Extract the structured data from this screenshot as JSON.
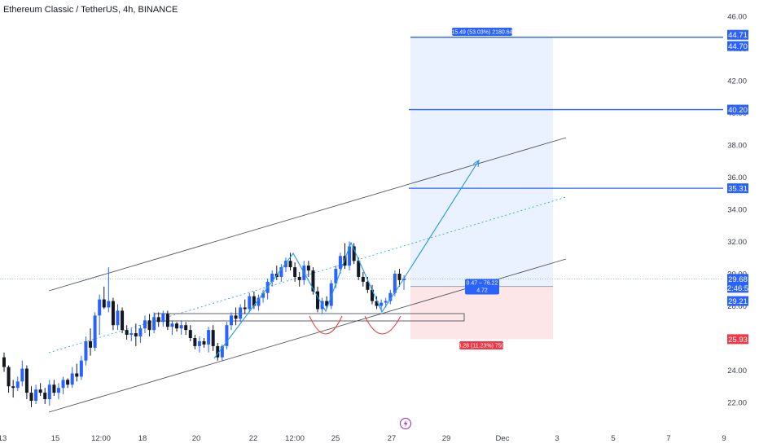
{
  "header": {
    "title": "Ethereum Classic / TetherUS, 4h, BINANCE"
  },
  "colors": {
    "up": "#2962ff",
    "down": "#131722",
    "accent": "#2962ff",
    "loss": "#f23645",
    "target_zone": "#eaf1ff",
    "stop_zone": "#fde6e8"
  },
  "chart_data": {
    "type": "candlestick",
    "ylim": [
      21,
      46.5
    ],
    "y_ticks": [
      "22.00",
      "24.00",
      "26.00",
      "28.00",
      "30.00",
      "32.00",
      "34.00",
      "36.00",
      "38.00",
      "40.00",
      "42.00",
      "44.00",
      "46.00"
    ],
    "x_ticks": [
      "13",
      "15",
      "12:00",
      "18",
      "20",
      "22",
      "12:00",
      "25",
      "27",
      "29",
      "Dec",
      "3",
      "5",
      "7",
      "9"
    ],
    "x_tick_pos": [
      3,
      68,
      124,
      175,
      241,
      311,
      362,
      412,
      481,
      548,
      617,
      684,
      753,
      821,
      889
    ],
    "candles": [
      [
        0,
        24.8,
        25.1,
        23.9,
        24.2
      ],
      [
        1,
        24.2,
        24.3,
        22.6,
        23.0
      ],
      [
        2,
        23.0,
        23.4,
        22.3,
        22.9
      ],
      [
        3,
        22.9,
        23.6,
        22.7,
        23.3
      ],
      [
        4,
        23.3,
        24.6,
        23.0,
        24.1
      ],
      [
        5,
        24.1,
        24.3,
        22.2,
        22.6
      ],
      [
        6,
        22.6,
        23.0,
        21.7,
        22.1
      ],
      [
        7,
        22.1,
        23.1,
        21.9,
        22.8
      ],
      [
        8,
        22.8,
        23.2,
        22.4,
        22.6
      ],
      [
        9,
        22.6,
        22.9,
        21.9,
        22.2
      ],
      [
        10,
        22.2,
        23.4,
        21.8,
        23.1
      ],
      [
        11,
        23.1,
        23.4,
        22.4,
        22.6
      ],
      [
        12,
        22.6,
        23.2,
        22.2,
        22.9
      ],
      [
        13,
        22.9,
        23.6,
        22.5,
        23.4
      ],
      [
        14,
        23.4,
        23.5,
        22.9,
        23.1
      ],
      [
        15,
        23.1,
        24.2,
        22.9,
        23.8
      ],
      [
        16,
        23.8,
        24.4,
        23.3,
        23.6
      ],
      [
        17,
        23.6,
        24.9,
        23.4,
        24.6
      ],
      [
        18,
        24.6,
        26.1,
        24.3,
        25.8
      ],
      [
        19,
        25.8,
        26.6,
        24.9,
        25.4
      ],
      [
        20,
        25.4,
        27.6,
        25.2,
        27.4
      ],
      [
        21,
        27.4,
        28.7,
        26.2,
        28.4
      ],
      [
        22,
        28.4,
        29.2,
        27.8,
        27.9
      ],
      [
        23,
        27.9,
        30.4,
        27.6,
        28.3
      ],
      [
        24,
        28.3,
        28.5,
        26.5,
        26.8
      ],
      [
        25,
        26.8,
        28.1,
        26.5,
        27.7
      ],
      [
        26,
        27.7,
        27.9,
        26.3,
        26.5
      ],
      [
        27,
        26.5,
        26.8,
        25.9,
        26.2
      ],
      [
        28,
        26.2,
        26.6,
        25.8,
        26.3
      ],
      [
        29,
        26.3,
        26.9,
        25.5,
        26.1
      ],
      [
        30,
        26.1,
        26.8,
        25.7,
        26.6
      ],
      [
        31,
        26.6,
        27.4,
        26.3,
        27.1
      ],
      [
        32,
        27.1,
        27.5,
        26.1,
        26.5
      ],
      [
        33,
        26.5,
        27.6,
        26.3,
        27.3
      ],
      [
        34,
        27.3,
        27.6,
        26.7,
        27.0
      ],
      [
        35,
        27.0,
        27.7,
        26.7,
        27.5
      ],
      [
        36,
        27.5,
        27.7,
        26.5,
        26.7
      ],
      [
        37,
        26.7,
        27.1,
        26.2,
        26.9
      ],
      [
        38,
        26.9,
        27.0,
        26.4,
        26.6
      ],
      [
        39,
        26.6,
        27.1,
        26.2,
        26.8
      ],
      [
        40,
        26.8,
        27.0,
        26.2,
        26.5
      ],
      [
        41,
        26.5,
        26.8,
        25.8,
        26.0
      ],
      [
        42,
        26.0,
        26.2,
        25.3,
        25.5
      ],
      [
        43,
        25.5,
        26.1,
        25.1,
        25.8
      ],
      [
        44,
        25.8,
        26.0,
        25.4,
        25.6
      ],
      [
        45,
        25.6,
        26.7,
        25.1,
        26.5
      ],
      [
        46,
        26.5,
        26.8,
        25.2,
        25.5
      ],
      [
        47,
        25.5,
        25.7,
        24.6,
        24.8
      ],
      [
        48,
        24.8,
        25.6,
        24.6,
        25.5
      ],
      [
        49,
        25.5,
        27.0,
        25.3,
        26.8
      ],
      [
        50,
        26.8,
        27.6,
        26.5,
        27.4
      ],
      [
        51,
        27.4,
        27.9,
        26.8,
        27.2
      ],
      [
        52,
        27.2,
        28.1,
        27.0,
        27.9
      ],
      [
        53,
        27.9,
        28.4,
        27.5,
        27.8
      ],
      [
        54,
        27.8,
        28.8,
        27.6,
        28.6
      ],
      [
        55,
        28.6,
        28.9,
        27.8,
        28.0
      ],
      [
        56,
        28.0,
        28.7,
        27.7,
        28.5
      ],
      [
        57,
        28.5,
        29.0,
        28.2,
        28.8
      ],
      [
        58,
        28.8,
        29.7,
        28.4,
        29.5
      ],
      [
        59,
        29.5,
        30.2,
        29.2,
        30.0
      ],
      [
        60,
        30.0,
        30.5,
        29.6,
        29.8
      ],
      [
        61,
        29.8,
        30.6,
        29.5,
        30.4
      ],
      [
        62,
        30.4,
        31.0,
        30.1,
        30.8
      ],
      [
        63,
        30.8,
        31.3,
        30.2,
        30.4
      ],
      [
        64,
        30.4,
        30.7,
        29.5,
        29.8
      ],
      [
        65,
        29.8,
        30.1,
        29.2,
        29.6
      ],
      [
        66,
        29.6,
        30.8,
        29.3,
        30.5
      ],
      [
        67,
        30.5,
        30.8,
        29.8,
        30.2
      ],
      [
        68,
        30.2,
        30.4,
        28.7,
        28.9
      ],
      [
        69,
        28.9,
        29.2,
        27.6,
        27.8
      ],
      [
        70,
        27.8,
        28.5,
        27.5,
        28.3
      ],
      [
        71,
        28.3,
        28.6,
        27.8,
        28.0
      ],
      [
        72,
        28.0,
        29.6,
        27.8,
        29.4
      ],
      [
        73,
        29.4,
        30.5,
        29.1,
        30.3
      ],
      [
        74,
        30.3,
        31.3,
        30.0,
        31.1
      ],
      [
        75,
        31.1,
        31.9,
        30.3,
        30.5
      ],
      [
        76,
        30.5,
        32.0,
        30.2,
        31.7
      ],
      [
        77,
        31.7,
        31.9,
        30.6,
        30.8
      ],
      [
        78,
        30.8,
        31.0,
        29.6,
        29.8
      ],
      [
        79,
        29.8,
        30.1,
        29.2,
        29.5
      ],
      [
        80,
        29.5,
        29.8,
        28.8,
        29.0
      ],
      [
        81,
        29.0,
        29.3,
        28.1,
        28.3
      ],
      [
        82,
        28.3,
        28.6,
        27.8,
        28.0
      ],
      [
        83,
        28.0,
        28.4,
        27.7,
        28.2
      ],
      [
        84,
        28.2,
        28.5,
        27.9,
        28.3
      ],
      [
        85,
        28.3,
        29.0,
        28.1,
        28.8
      ],
      [
        86,
        28.8,
        30.2,
        28.6,
        30.0
      ],
      [
        87,
        30.0,
        30.3,
        29.2,
        29.6
      ],
      [
        88,
        29.6,
        29.9,
        29.0,
        29.7
      ]
    ],
    "channel": {
      "upper": [
        [
          60,
          357
        ],
        [
          695,
          169
        ]
      ],
      "lower": [
        [
          60,
          506
        ],
        [
          695,
          318
        ]
      ],
      "middle": [
        [
          60,
          433
        ],
        [
          695,
          242
        ]
      ]
    },
    "zigzag": [
      [
        263,
        440
      ],
      [
        360,
        311
      ],
      [
        400,
        382
      ],
      [
        431,
        298
      ],
      [
        469,
        383
      ],
      [
        494,
        345
      ],
      [
        588,
        197
      ]
    ],
    "rectangle": [
      [
        190,
        385
      ],
      [
        570,
        394
      ]
    ],
    "arcs": [
      [
        [
          380,
          388
        ],
        [
          400,
          410
        ],
        [
          420,
          388
        ]
      ],
      [
        [
          448,
          388
        ],
        [
          469,
          410
        ],
        [
          492,
          388
        ]
      ]
    ],
    "position_tool": {
      "target_label": "15.49 (53.03%) 2180.64",
      "middle_label_1": "0.47 – 76.22",
      "middle_label_2": "4.72",
      "stop_label": "3.28 (11.23%) 750",
      "entry_price": 29.21,
      "target_price": 44.7,
      "stop_price": 25.93
    },
    "horizontal_levels": [
      44.7,
      40.2,
      35.31
    ],
    "price_tags": [
      {
        "text": "44.71",
        "price": 44.85,
        "color": "#2962ff"
      },
      {
        "text": "44.70",
        "price": 44.15,
        "color": "#2962ff"
      },
      {
        "text": "40.20",
        "price": 40.2,
        "color": "#2962ff"
      },
      {
        "text": "35.31",
        "price": 35.31,
        "color": "#2962ff"
      },
      {
        "text": "29.68",
        "price": 29.68,
        "color": "#2962ff"
      },
      {
        "text": "02:46:59",
        "price": 29.12,
        "color": "#2962ff"
      },
      {
        "text": "29.21",
        "price": 28.3,
        "color": "#2962ff"
      },
      {
        "text": "25.93",
        "price": 25.93,
        "color": "#f23645"
      }
    ]
  }
}
